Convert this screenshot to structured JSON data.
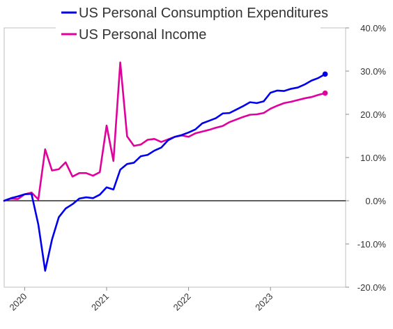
{
  "chart_data": {
    "type": "line",
    "title": "",
    "xlabel": "",
    "ylabel": "",
    "legend_position": "top-left",
    "grid": false,
    "y_axis_side": "right",
    "ylim": [
      -20,
      40
    ],
    "y_ticks": [
      {
        "value": 40,
        "label": "40.0%"
      },
      {
        "value": 30,
        "label": "30.0%"
      },
      {
        "value": 20,
        "label": "20.0%"
      },
      {
        "value": 10,
        "label": "10.0%"
      },
      {
        "value": 0,
        "label": "0.0%"
      },
      {
        "value": -10,
        "label": "-10.0%"
      },
      {
        "value": -20,
        "label": "-20.0%"
      }
    ],
    "x_ticks": [
      {
        "value": "2020-01",
        "label": "2020"
      },
      {
        "value": "2021-01",
        "label": "2021"
      },
      {
        "value": "2022-01",
        "label": "2022"
      },
      {
        "value": "2023-01",
        "label": "2023"
      }
    ],
    "x_range": [
      "2019-10",
      "2023-12"
    ],
    "x": [
      "2019-10",
      "2019-11",
      "2019-12",
      "2020-01",
      "2020-02",
      "2020-03",
      "2020-04",
      "2020-05",
      "2020-06",
      "2020-07",
      "2020-08",
      "2020-09",
      "2020-10",
      "2020-11",
      "2020-12",
      "2021-01",
      "2021-02",
      "2021-03",
      "2021-04",
      "2021-05",
      "2021-06",
      "2021-07",
      "2021-08",
      "2021-09",
      "2021-10",
      "2021-11",
      "2021-12",
      "2022-01",
      "2022-02",
      "2022-03",
      "2022-04",
      "2022-05",
      "2022-06",
      "2022-07",
      "2022-08",
      "2022-09",
      "2022-10",
      "2022-11",
      "2022-12",
      "2023-01",
      "2023-02",
      "2023-03",
      "2023-04",
      "2023-05",
      "2023-06",
      "2023-07",
      "2023-08",
      "2023-09"
    ],
    "series": [
      {
        "name": "US Personal Consumption Expenditures",
        "color": "#0000ee",
        "values": [
          0.0,
          0.6,
          1.0,
          1.5,
          1.6,
          -5.5,
          -16.2,
          -9.0,
          -3.8,
          -1.8,
          -0.8,
          0.5,
          0.8,
          0.6,
          1.4,
          3.1,
          2.6,
          7.2,
          8.5,
          8.8,
          10.3,
          10.6,
          11.6,
          12.3,
          14.0,
          14.8,
          15.2,
          15.8,
          16.5,
          17.9,
          18.5,
          19.1,
          20.2,
          20.3,
          21.1,
          21.9,
          22.8,
          22.6,
          23.0,
          25.0,
          25.5,
          25.4,
          25.9,
          26.2,
          26.9,
          27.8,
          28.4,
          29.3
        ]
      },
      {
        "name": "US Personal Income",
        "color": "#e0009b",
        "values": [
          0.0,
          0.5,
          0.4,
          1.5,
          1.9,
          0.3,
          11.9,
          7.0,
          7.3,
          8.9,
          5.6,
          6.4,
          6.4,
          5.8,
          6.6,
          17.4,
          9.2,
          32.0,
          14.9,
          12.7,
          13.0,
          14.1,
          14.3,
          13.6,
          14.2,
          14.8,
          15.1,
          14.8,
          15.6,
          16.0,
          16.4,
          16.9,
          17.3,
          18.2,
          18.8,
          19.4,
          19.9,
          20.0,
          20.3,
          21.3,
          22.0,
          22.6,
          22.9,
          23.3,
          23.7,
          24.0,
          24.5,
          24.9
        ]
      }
    ]
  }
}
